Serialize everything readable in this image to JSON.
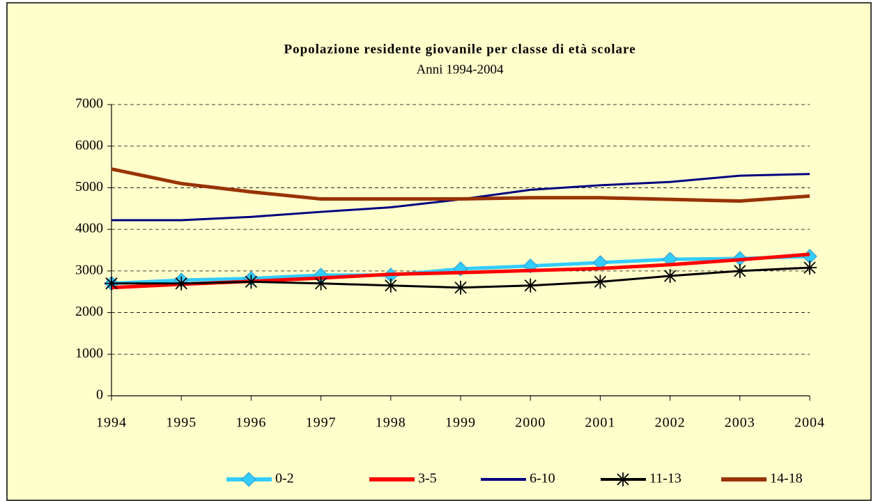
{
  "chart_data": {
    "type": "line",
    "title": "Popolazione residente giovanile per classe di età scolare",
    "subtitle": "Anni 1994-2004",
    "x": [
      1994,
      1995,
      1996,
      1997,
      1998,
      1999,
      2000,
      2001,
      2002,
      2003,
      2004
    ],
    "xlim": [
      1994,
      2004
    ],
    "xticks": [
      1994,
      1995,
      1996,
      1997,
      1998,
      1999,
      2000,
      2001,
      2002,
      2003,
      2004
    ],
    "ylim": [
      0,
      7000
    ],
    "yticks": [
      0,
      1000,
      2000,
      3000,
      4000,
      5000,
      6000,
      7000
    ],
    "grid": true,
    "legend": "bottom",
    "series": [
      {
        "name": "0-2",
        "color": "#33ccff",
        "marker": "diamond",
        "values": [
          2700,
          2780,
          2820,
          2900,
          2900,
          3050,
          3120,
          3200,
          3280,
          3300,
          3350
        ]
      },
      {
        "name": "3-5",
        "color": "#ff0000",
        "values": [
          2600,
          2680,
          2750,
          2830,
          2920,
          2960,
          3010,
          3060,
          3150,
          3270,
          3400
        ]
      },
      {
        "name": "6-10",
        "color": "#000080",
        "values": [
          4220,
          4220,
          4300,
          4420,
          4530,
          4720,
          4950,
          5060,
          5140,
          5290,
          5330
        ]
      },
      {
        "name": "11-13",
        "color": "#000000",
        "marker": "star",
        "values": [
          2700,
          2700,
          2740,
          2700,
          2650,
          2600,
          2650,
          2740,
          2880,
          3000,
          3080
        ]
      },
      {
        "name": "14-18",
        "color": "#993300",
        "values": [
          5450,
          5100,
          4900,
          4730,
          4730,
          4730,
          4760,
          4760,
          4720,
          4680,
          4800
        ]
      }
    ]
  }
}
